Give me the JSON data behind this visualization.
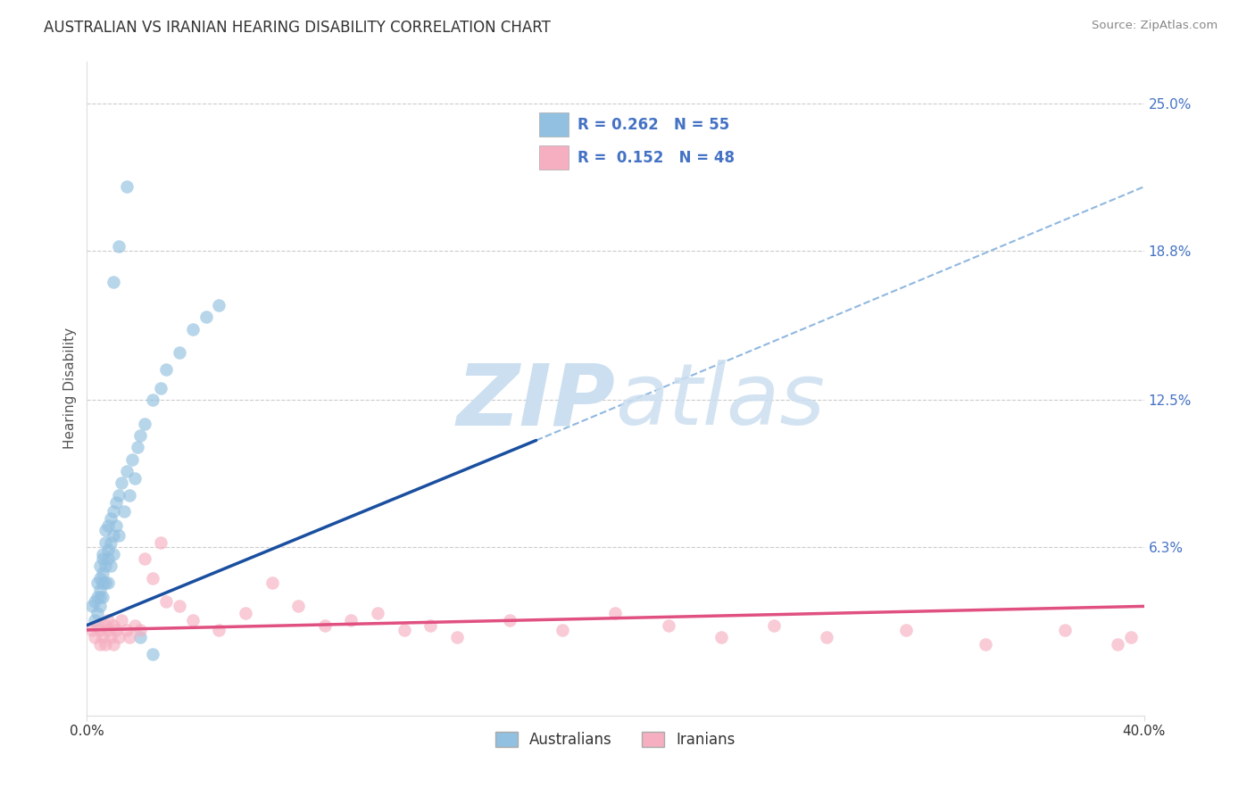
{
  "title": "AUSTRALIAN VS IRANIAN HEARING DISABILITY CORRELATION CHART",
  "source": "Source: ZipAtlas.com",
  "ylabel": "Hearing Disability",
  "xlim": [
    0.0,
    0.4
  ],
  "ylim": [
    -0.008,
    0.268
  ],
  "right_yticks": [
    0.063,
    0.125,
    0.188,
    0.25
  ],
  "right_yticklabels": [
    "6.3%",
    "12.5%",
    "18.8%",
    "25.0%"
  ],
  "color_blue": "#92c0e0",
  "color_pink": "#f5afc0",
  "color_line_blue": "#1a4fa0",
  "color_line_pink": "#e05080",
  "color_dash": "#90b8e0",
  "watermark_zip": "ZIP",
  "watermark_atlas": "atlas",
  "watermark_color": "#ccdff0",
  "background_color": "#ffffff",
  "grid_color": "#cccccc",
  "aus_x": [
    0.002,
    0.003,
    0.003,
    0.004,
    0.004,
    0.004,
    0.005,
    0.005,
    0.005,
    0.005,
    0.005,
    0.006,
    0.006,
    0.006,
    0.006,
    0.006,
    0.007,
    0.007,
    0.007,
    0.007,
    0.008,
    0.008,
    0.008,
    0.008,
    0.009,
    0.009,
    0.009,
    0.01,
    0.01,
    0.01,
    0.011,
    0.011,
    0.012,
    0.012,
    0.013,
    0.014,
    0.015,
    0.016,
    0.017,
    0.018,
    0.019,
    0.02,
    0.022,
    0.025,
    0.028,
    0.03,
    0.035,
    0.04,
    0.045,
    0.05,
    0.01,
    0.012,
    0.015,
    0.02,
    0.025
  ],
  "aus_y": [
    0.038,
    0.04,
    0.032,
    0.042,
    0.035,
    0.048,
    0.05,
    0.042,
    0.038,
    0.045,
    0.055,
    0.058,
    0.052,
    0.048,
    0.06,
    0.042,
    0.065,
    0.055,
    0.048,
    0.07,
    0.062,
    0.058,
    0.072,
    0.048,
    0.065,
    0.075,
    0.055,
    0.068,
    0.078,
    0.06,
    0.082,
    0.072,
    0.085,
    0.068,
    0.09,
    0.078,
    0.095,
    0.085,
    0.1,
    0.092,
    0.105,
    0.11,
    0.115,
    0.125,
    0.13,
    0.138,
    0.145,
    0.155,
    0.16,
    0.165,
    0.175,
    0.19,
    0.215,
    0.025,
    0.018
  ],
  "ira_x": [
    0.002,
    0.003,
    0.004,
    0.005,
    0.005,
    0.006,
    0.007,
    0.007,
    0.008,
    0.008,
    0.009,
    0.01,
    0.01,
    0.011,
    0.012,
    0.013,
    0.015,
    0.016,
    0.018,
    0.02,
    0.022,
    0.025,
    0.028,
    0.03,
    0.035,
    0.04,
    0.05,
    0.06,
    0.07,
    0.08,
    0.09,
    0.1,
    0.11,
    0.12,
    0.13,
    0.14,
    0.16,
    0.18,
    0.2,
    0.22,
    0.24,
    0.26,
    0.28,
    0.31,
    0.34,
    0.37,
    0.39,
    0.395
  ],
  "ira_y": [
    0.028,
    0.025,
    0.03,
    0.022,
    0.028,
    0.025,
    0.03,
    0.022,
    0.028,
    0.032,
    0.025,
    0.03,
    0.022,
    0.028,
    0.025,
    0.032,
    0.028,
    0.025,
    0.03,
    0.028,
    0.058,
    0.05,
    0.065,
    0.04,
    0.038,
    0.032,
    0.028,
    0.035,
    0.048,
    0.038,
    0.03,
    0.032,
    0.035,
    0.028,
    0.03,
    0.025,
    0.032,
    0.028,
    0.035,
    0.03,
    0.025,
    0.03,
    0.025,
    0.028,
    0.022,
    0.028,
    0.022,
    0.025
  ],
  "blue_line_x": [
    0.0,
    0.17
  ],
  "blue_line_y": [
    0.03,
    0.108
  ],
  "dash_line_x": [
    0.17,
    0.4
  ],
  "dash_line_y": [
    0.108,
    0.215
  ],
  "pink_line_x": [
    0.0,
    0.4
  ],
  "pink_line_y": [
    0.028,
    0.038
  ]
}
